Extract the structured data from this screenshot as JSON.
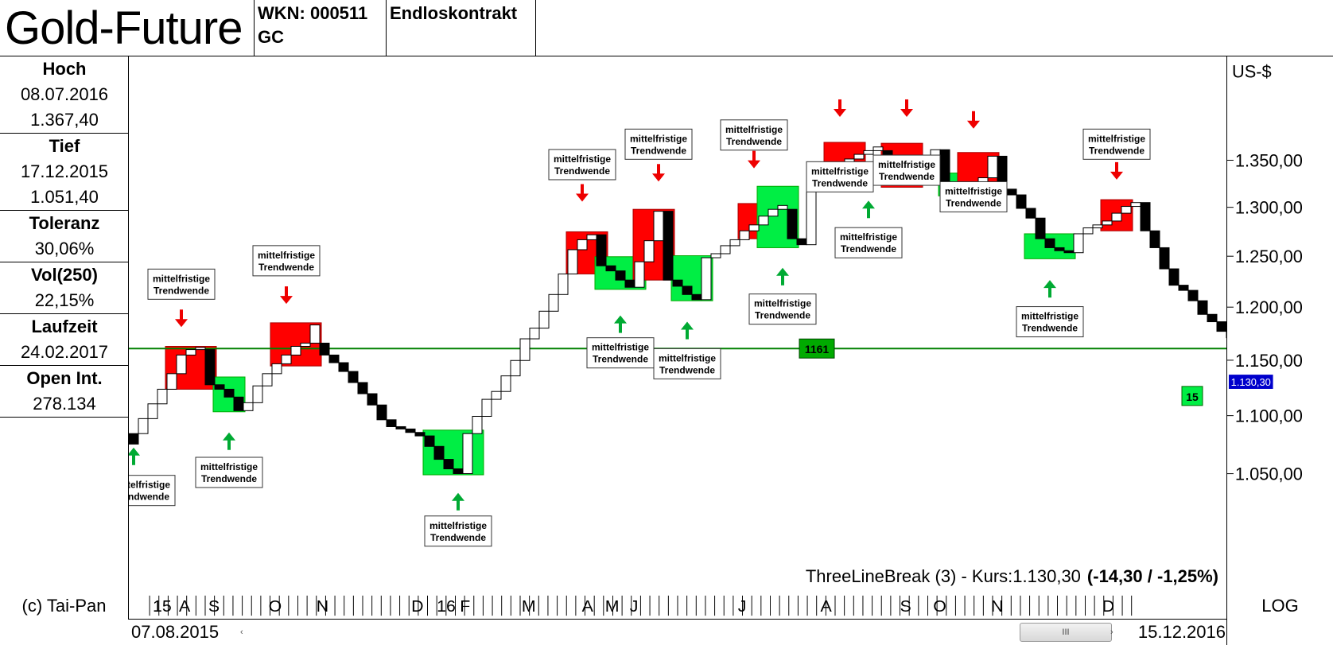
{
  "header": {
    "title": "Gold-Future",
    "wkn": "WKN: 000511",
    "symbol": "GC",
    "contract": "Endloskontrakt"
  },
  "stats": [
    {
      "label": "Hoch",
      "values": [
        "08.07.2016",
        "1.367,40"
      ]
    },
    {
      "label": "Tief",
      "values": [
        "17.12.2015",
        "1.051,40"
      ]
    },
    {
      "label": "Toleranz",
      "values": [
        "30,06%"
      ]
    },
    {
      "label": "Vol(250)",
      "values": [
        "22,15%"
      ]
    },
    {
      "label": "Laufzeit",
      "values": [
        "24.02.2017"
      ]
    },
    {
      "label": "Open Int.",
      "values": [
        "278.134"
      ]
    }
  ],
  "footer": {
    "copyright": "(c) Tai-Pan",
    "scale_mode": "LOG",
    "start_date": "07.08.2015",
    "end_date": "15.12.2016",
    "scroll_thumb": "III",
    "scroll_left_arrow": "‹",
    "scroll_right_arrow": "›",
    "month_labels": [
      "15",
      "A",
      "S",
      "O",
      "N",
      "D",
      "16",
      "F",
      "M",
      "A",
      "M",
      "J",
      "J",
      "A",
      "S",
      "O",
      "N",
      "D"
    ]
  },
  "colors": {
    "up_box": "#ffffff",
    "down_box": "#000000",
    "bearish_zone": "#ff0000",
    "bullish_zone": "#00ee44",
    "reference_line": "#008000",
    "marker_down": "#ee0000",
    "marker_up": "#00aa33",
    "current_price_bg": "#0000cc"
  },
  "chart_data": {
    "type": "three-line-break",
    "unit_label": "US-$",
    "y_scale": "log",
    "ylim": [
      1000,
      1400
    ],
    "y_ticks": [
      1050,
      1100,
      1150,
      1200,
      1250,
      1300,
      1350
    ],
    "y_tick_labels": [
      "1.050,00",
      "1.100,00",
      "1.150,00",
      "1.200,00",
      "1.250,00",
      "1.300,00",
      "1.350,00"
    ],
    "caption_prefix": "ThreeLineBreak (3) - Kurs:1.130,30",
    "caption_change": "(-14,30 / -1,25%)",
    "current_price": 1130.3,
    "current_price_label": "1.130,30",
    "reference_level": 1161,
    "reference_label": "1161",
    "count_marker": "15",
    "signal_text": "mittelfristige Trendwende",
    "signal_line1": "mittelfristige",
    "signal_line2": "Trendwende",
    "lines": [
      [
        1076,
        1085,
        "down"
      ],
      [
        1085,
        1098,
        "up"
      ],
      [
        1098,
        1111,
        "up"
      ],
      [
        1111,
        1124,
        "up"
      ],
      [
        1124,
        1138,
        "up"
      ],
      [
        1138,
        1155,
        "up"
      ],
      [
        1155,
        1160,
        "up"
      ],
      [
        1160,
        1162,
        "up"
      ],
      [
        1128,
        1160,
        "down"
      ],
      [
        1124,
        1128,
        "down"
      ],
      [
        1117,
        1124,
        "down"
      ],
      [
        1105,
        1117,
        "down"
      ],
      [
        1105,
        1112,
        "up"
      ],
      [
        1112,
        1127,
        "up"
      ],
      [
        1127,
        1138,
        "up"
      ],
      [
        1138,
        1147,
        "up"
      ],
      [
        1147,
        1155,
        "up"
      ],
      [
        1155,
        1163,
        "up"
      ],
      [
        1163,
        1166,
        "up"
      ],
      [
        1166,
        1183,
        "up"
      ],
      [
        1155,
        1166,
        "down"
      ],
      [
        1148,
        1155,
        "down"
      ],
      [
        1140,
        1148,
        "down"
      ],
      [
        1130,
        1140,
        "down"
      ],
      [
        1120,
        1130,
        "down"
      ],
      [
        1110,
        1120,
        "down"
      ],
      [
        1097,
        1110,
        "down"
      ],
      [
        1091,
        1097,
        "down"
      ],
      [
        1089,
        1091,
        "down"
      ],
      [
        1086,
        1089,
        "down"
      ],
      [
        1083,
        1086,
        "down"
      ],
      [
        1074,
        1083,
        "down"
      ],
      [
        1063,
        1074,
        "down"
      ],
      [
        1055,
        1063,
        "down"
      ],
      [
        1051,
        1055,
        "down"
      ],
      [
        1051,
        1085,
        "up"
      ],
      [
        1085,
        1100,
        "up"
      ],
      [
        1100,
        1115,
        "up"
      ],
      [
        1115,
        1122,
        "up"
      ],
      [
        1122,
        1136,
        "up"
      ],
      [
        1136,
        1150,
        "up"
      ],
      [
        1150,
        1170,
        "up"
      ],
      [
        1170,
        1180,
        "up"
      ],
      [
        1180,
        1196,
        "up"
      ],
      [
        1196,
        1212,
        "up"
      ],
      [
        1212,
        1232,
        "up"
      ],
      [
        1232,
        1256,
        "up"
      ],
      [
        1256,
        1266,
        "up"
      ],
      [
        1266,
        1271,
        "up"
      ],
      [
        1240,
        1271,
        "down"
      ],
      [
        1235,
        1240,
        "down"
      ],
      [
        1226,
        1235,
        "down"
      ],
      [
        1219,
        1226,
        "down"
      ],
      [
        1219,
        1244,
        "up"
      ],
      [
        1244,
        1265,
        "up"
      ],
      [
        1265,
        1295,
        "up"
      ],
      [
        1226,
        1295,
        "down"
      ],
      [
        1220,
        1226,
        "down"
      ],
      [
        1212,
        1220,
        "down"
      ],
      [
        1207,
        1212,
        "down"
      ],
      [
        1207,
        1248,
        "up"
      ],
      [
        1248,
        1252,
        "up"
      ],
      [
        1252,
        1260,
        "up"
      ],
      [
        1260,
        1266,
        "up"
      ],
      [
        1266,
        1275,
        "up"
      ],
      [
        1275,
        1281,
        "up"
      ],
      [
        1281,
        1290,
        "up"
      ],
      [
        1290,
        1297,
        "up"
      ],
      [
        1297,
        1301,
        "up"
      ],
      [
        1267,
        1297,
        "down"
      ],
      [
        1261,
        1267,
        "down"
      ],
      [
        1261,
        1318,
        "up"
      ],
      [
        1318,
        1325,
        "up"
      ],
      [
        1325,
        1332,
        "up"
      ],
      [
        1332,
        1342,
        "up"
      ],
      [
        1342,
        1350,
        "up"
      ],
      [
        1350,
        1355,
        "up"
      ],
      [
        1355,
        1359,
        "up"
      ],
      [
        1359,
        1363,
        "up"
      ],
      [
        1322,
        1359,
        "down"
      ],
      [
        1322,
        1332,
        "up"
      ],
      [
        1332,
        1338,
        "up"
      ],
      [
        1338,
        1345,
        "up"
      ],
      [
        1345,
        1353,
        "up"
      ],
      [
        1353,
        1360,
        "up"
      ],
      [
        1325,
        1360,
        "down"
      ],
      [
        1322,
        1325,
        "down"
      ],
      [
        1318,
        1322,
        "down"
      ],
      [
        1312,
        1318,
        "down"
      ],
      [
        1312,
        1330,
        "up"
      ],
      [
        1330,
        1353,
        "up"
      ],
      [
        1318,
        1353,
        "down"
      ],
      [
        1312,
        1318,
        "down"
      ],
      [
        1298,
        1312,
        "down"
      ],
      [
        1288,
        1298,
        "down"
      ],
      [
        1267,
        1288,
        "down"
      ],
      [
        1258,
        1267,
        "down"
      ],
      [
        1255,
        1258,
        "down"
      ],
      [
        1253,
        1255,
        "down"
      ],
      [
        1253,
        1272,
        "up"
      ],
      [
        1272,
        1278,
        "up"
      ],
      [
        1278,
        1281,
        "up"
      ],
      [
        1281,
        1285,
        "up"
      ],
      [
        1285,
        1293,
        "up"
      ],
      [
        1293,
        1300,
        "up"
      ],
      [
        1300,
        1304,
        "up"
      ],
      [
        1275,
        1304,
        "down"
      ],
      [
        1258,
        1275,
        "down"
      ],
      [
        1237,
        1258,
        "down"
      ],
      [
        1221,
        1237,
        "down"
      ],
      [
        1216,
        1221,
        "down"
      ],
      [
        1206,
        1216,
        "down"
      ],
      [
        1193,
        1206,
        "down"
      ],
      [
        1186,
        1193,
        "down"
      ],
      [
        1177,
        1186,
        "down"
      ],
      [
        1171,
        1177,
        "down"
      ],
      [
        1162,
        1171,
        "down"
      ],
      [
        1144,
        1162,
        "down"
      ],
      [
        1130,
        1144,
        "down"
      ]
    ],
    "zones": [
      {
        "kind": "bearish",
        "from": 4,
        "to": 8,
        "low": 1124,
        "high": 1163
      },
      {
        "kind": "bullish",
        "from": 9,
        "to": 11,
        "low": 1104,
        "high": 1135
      },
      {
        "kind": "bearish",
        "from": 15,
        "to": 19,
        "low": 1145,
        "high": 1185
      },
      {
        "kind": "bullish",
        "from": 31,
        "to": 36,
        "low": 1050,
        "high": 1088
      },
      {
        "kind": "bearish",
        "from": 46,
        "to": 49,
        "low": 1232,
        "high": 1274
      },
      {
        "kind": "bullish",
        "from": 49,
        "to": 53,
        "low": 1217,
        "high": 1249
      },
      {
        "kind": "bearish",
        "from": 53,
        "to": 56,
        "low": 1226,
        "high": 1297
      },
      {
        "kind": "bullish",
        "from": 57,
        "to": 60,
        "low": 1206,
        "high": 1250
      },
      {
        "kind": "bearish",
        "from": 64,
        "to": 66,
        "low": 1267,
        "high": 1303
      },
      {
        "kind": "bullish",
        "from": 66,
        "to": 69,
        "low": 1258,
        "high": 1321
      },
      {
        "kind": "bearish",
        "from": 73,
        "to": 76,
        "low": 1330,
        "high": 1368
      },
      {
        "kind": "bullish",
        "from": 76,
        "to": 79,
        "low": 1329,
        "high": 1342
      },
      {
        "kind": "bearish",
        "from": 79,
        "to": 82,
        "low": 1320,
        "high": 1367
      },
      {
        "kind": "bullish",
        "from": 85,
        "to": 87,
        "low": 1311,
        "high": 1335
      },
      {
        "kind": "bearish",
        "from": 87,
        "to": 90,
        "low": 1311,
        "high": 1357
      },
      {
        "kind": "bullish",
        "from": 94,
        "to": 98,
        "low": 1247,
        "high": 1272
      },
      {
        "kind": "bearish",
        "from": 102,
        "to": 104,
        "low": 1275,
        "high": 1307
      }
    ],
    "signals": [
      {
        "dir": "up",
        "at": 0,
        "arrow": 1073,
        "label": 1037
      },
      {
        "dir": "down",
        "at": 5,
        "arrow": 1181,
        "label": 1222
      },
      {
        "dir": "up",
        "at": 10,
        "arrow": 1086,
        "label": 1052
      },
      {
        "dir": "down",
        "at": 16,
        "arrow": 1203,
        "label": 1245
      },
      {
        "dir": "up",
        "at": 34,
        "arrow": 1035,
        "label": 1004
      },
      {
        "dir": "down",
        "at": 47,
        "arrow": 1305,
        "label": 1344
      },
      {
        "dir": "up",
        "at": 51,
        "arrow": 1192,
        "label": 1157
      },
      {
        "dir": "down",
        "at": 55,
        "arrow": 1326,
        "label": 1366
      },
      {
        "dir": "up",
        "at": 58,
        "arrow": 1186,
        "label": 1147
      },
      {
        "dir": "down",
        "at": 65,
        "arrow": 1340,
        "label": 1376
      },
      {
        "dir": "up",
        "at": 68,
        "arrow": 1238,
        "label": 1198
      },
      {
        "dir": "down",
        "at": 74,
        "arrow": 1396,
        "label": 1331
      },
      {
        "dir": "up",
        "at": 77,
        "arrow": 1306,
        "label": 1263
      },
      {
        "dir": "down",
        "at": 81,
        "arrow": 1396,
        "label": 1338
      },
      {
        "dir": "down",
        "at": 88,
        "arrow": 1383,
        "label": 1310
      },
      {
        "dir": "up",
        "at": 96,
        "arrow": 1226,
        "label": 1186
      },
      {
        "dir": "down",
        "at": 103,
        "arrow": 1328,
        "label": 1366
      }
    ]
  }
}
